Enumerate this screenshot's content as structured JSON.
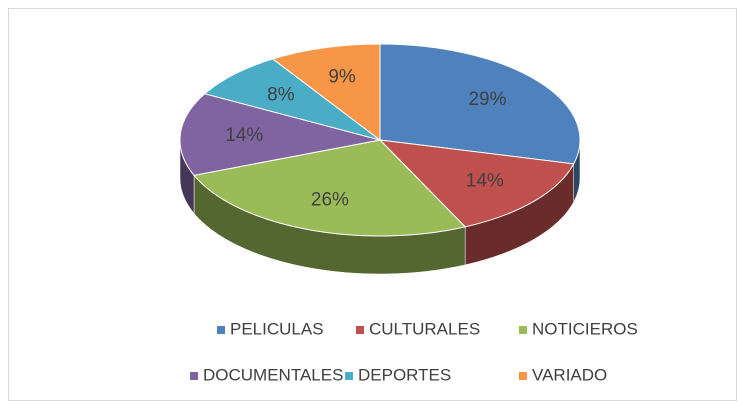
{
  "chart_data": {
    "type": "pie",
    "categories": [
      "PELICULAS",
      "CULTURALES",
      "NOTICIEROS",
      "DOCUMENTALES",
      "DEPORTES",
      "VARIADO"
    ],
    "values": [
      29,
      14,
      26,
      14,
      8,
      9
    ],
    "value_labels": [
      "29%",
      "14%",
      "26%",
      "14%",
      "8%",
      "9%"
    ],
    "colors": [
      "#4f81bd",
      "#c0504d",
      "#9bbb59",
      "#8064a2",
      "#4bacc6",
      "#f79646"
    ],
    "legend": "bottom"
  }
}
